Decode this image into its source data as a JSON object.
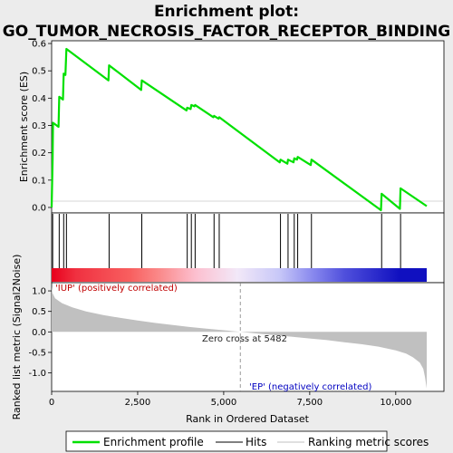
{
  "title_line1": "Enrichment plot:",
  "title_line2": "GO_TUMOR_NECROSIS_FACTOR_RECEPTOR_BINDING",
  "colors": {
    "es_line": "#00e000",
    "hits": "#000000",
    "metric_fill": "#c0c0c0",
    "pos_label": "#c00000",
    "neg_label": "#0000c0",
    "zero_line": "#808080"
  },
  "chart_data": [
    {
      "type": "line",
      "name": "es-panel",
      "ylabel": "Enrichment score (ES)",
      "ylim": [
        -0.02,
        0.61
      ],
      "xlim": [
        0,
        10900
      ],
      "yticks": [
        0.0,
        0.1,
        0.2,
        0.3,
        0.4,
        0.5,
        0.6
      ],
      "ytick_labels": [
        "0.0",
        "0.1",
        "0.2",
        "0.3",
        "0.4",
        "0.5",
        "0.6"
      ],
      "series": [
        {
          "name": "Enrichment profile",
          "x": [
            0,
            30,
            40,
            200,
            220,
            330,
            350,
            400,
            430,
            1650,
            1670,
            2600,
            2620,
            3920,
            3940,
            4040,
            4060,
            4150,
            4170,
            4700,
            4720,
            4850,
            4870,
            6630,
            6650,
            6850,
            6870,
            7030,
            7050,
            7130,
            7150,
            7530,
            7550,
            9570,
            9590,
            10120,
            10140,
            10900
          ],
          "y": [
            0.0,
            0.18,
            0.31,
            0.295,
            0.405,
            0.395,
            0.49,
            0.485,
            0.58,
            0.465,
            0.52,
            0.43,
            0.465,
            0.355,
            0.365,
            0.36,
            0.375,
            0.37,
            0.375,
            0.33,
            0.335,
            0.325,
            0.33,
            0.165,
            0.175,
            0.16,
            0.175,
            0.165,
            0.18,
            0.175,
            0.185,
            0.155,
            0.175,
            -0.01,
            0.05,
            -0.005,
            0.07,
            0.005
          ]
        }
      ],
      "grid": false
    },
    {
      "type": "hits",
      "name": "hits-panel",
      "hit_ranks": [
        30,
        220,
        350,
        430,
        1670,
        2620,
        3940,
        4060,
        4170,
        4720,
        4870,
        6650,
        6870,
        7050,
        7150,
        7550,
        9590,
        10140
      ],
      "band_stops": [
        {
          "x": 0,
          "color": "#e8001c"
        },
        {
          "x": 700,
          "color": "#f03040"
        },
        {
          "x": 2300,
          "color": "#f86060"
        },
        {
          "x": 3100,
          "color": "#fa8888"
        },
        {
          "x": 4200,
          "color": "#fcc0d0"
        },
        {
          "x": 5400,
          "color": "#f2e8f8"
        },
        {
          "x": 6600,
          "color": "#c8c8f8"
        },
        {
          "x": 7600,
          "color": "#8888ee"
        },
        {
          "x": 8500,
          "color": "#5050dc"
        },
        {
          "x": 10100,
          "color": "#1010c0"
        },
        {
          "x": 10900,
          "color": "#1010c0"
        }
      ]
    },
    {
      "type": "area",
      "name": "metric-panel",
      "ylabel": "Ranked list metric (Signal2Noise)",
      "xlabel": "Rank in Ordered Dataset",
      "ylim": [
        -1.45,
        1.2
      ],
      "xlim": [
        0,
        10900
      ],
      "yticks": [
        -1.0,
        -0.5,
        0.0,
        0.5,
        1.0
      ],
      "ytick_labels": [
        "-1.0",
        "-0.5",
        "0.0",
        "0.5",
        "1.0"
      ],
      "xticks": [
        0,
        2500,
        5000,
        7500,
        10000
      ],
      "xtick_labels": [
        "0",
        "2,500",
        "5,000",
        "7,500",
        "10,000"
      ],
      "x": [
        0,
        20,
        100,
        300,
        600,
        1000,
        1500,
        2000,
        2500,
        3000,
        3500,
        4000,
        4500,
        5000,
        5482,
        6000,
        6500,
        7000,
        7500,
        8000,
        8500,
        9000,
        9500,
        10000,
        10300,
        10500,
        10700,
        10800,
        10850,
        10900
      ],
      "values": [
        1.1,
        0.95,
        0.82,
        0.7,
        0.6,
        0.5,
        0.41,
        0.34,
        0.28,
        0.22,
        0.17,
        0.12,
        0.08,
        0.04,
        0.0,
        -0.04,
        -0.08,
        -0.12,
        -0.16,
        -0.2,
        -0.25,
        -0.3,
        -0.36,
        -0.45,
        -0.53,
        -0.62,
        -0.75,
        -0.9,
        -1.1,
        -1.38
      ],
      "zero_cross_rank": 5482,
      "annotations": {
        "positive": "'IUP' (positively correlated)",
        "negative": "'EP' (negatively correlated)",
        "zero_cross": "Zero cross at 5482"
      }
    }
  ],
  "legend": {
    "items": [
      {
        "label": "Enrichment profile",
        "color": "#00e000",
        "style": "thick"
      },
      {
        "label": "Hits",
        "color": "#000000",
        "style": "thin"
      },
      {
        "label": "Ranking metric scores",
        "color": "#c0c0c0",
        "style": "thin"
      }
    ]
  }
}
